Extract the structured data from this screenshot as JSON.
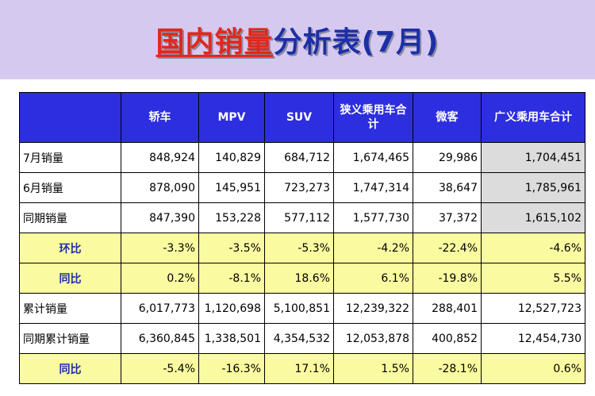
{
  "title": {
    "part1": "国内销量",
    "part2": "分析表(7月)"
  },
  "table": {
    "headers": [
      "",
      "轿车",
      "MPV",
      "SUV",
      "狭义乘用车合计",
      "微客",
      "广义乘用车合计"
    ],
    "rows": [
      {
        "label": "7月销量",
        "cells": [
          "848,924",
          "140,829",
          "684,712",
          "1,674,465",
          "29,986",
          "1,704,451"
        ]
      },
      {
        "label": "6月销量",
        "cells": [
          "878,090",
          "145,951",
          "723,273",
          "1,747,314",
          "38,647",
          "1,785,961"
        ]
      },
      {
        "label": "同期销量",
        "cells": [
          "847,390",
          "153,228",
          "577,112",
          "1,577,730",
          "37,372",
          "1,615,102"
        ]
      },
      {
        "label": "环比",
        "cells": [
          "-3.3%",
          "-3.5%",
          "-5.3%",
          "-4.2%",
          "-22.4%",
          "-4.6%"
        ]
      },
      {
        "label": "同比",
        "cells": [
          "0.2%",
          "-8.1%",
          "18.6%",
          "6.1%",
          "-19.8%",
          "5.5%"
        ]
      },
      {
        "label": "累计销量",
        "cells": [
          "6,017,773",
          "1,120,698",
          "5,100,851",
          "12,239,322",
          "288,401",
          "12,527,723"
        ]
      },
      {
        "label": "同期累计销量",
        "cells": [
          "6,360,845",
          "1,338,501",
          "4,354,532",
          "12,053,878",
          "400,852",
          "12,454,730"
        ]
      },
      {
        "label": "同比",
        "cells": [
          "-5.4%",
          "-16.3%",
          "17.1%",
          "1.5%",
          "-28.1%",
          "0.6%"
        ]
      }
    ]
  }
}
